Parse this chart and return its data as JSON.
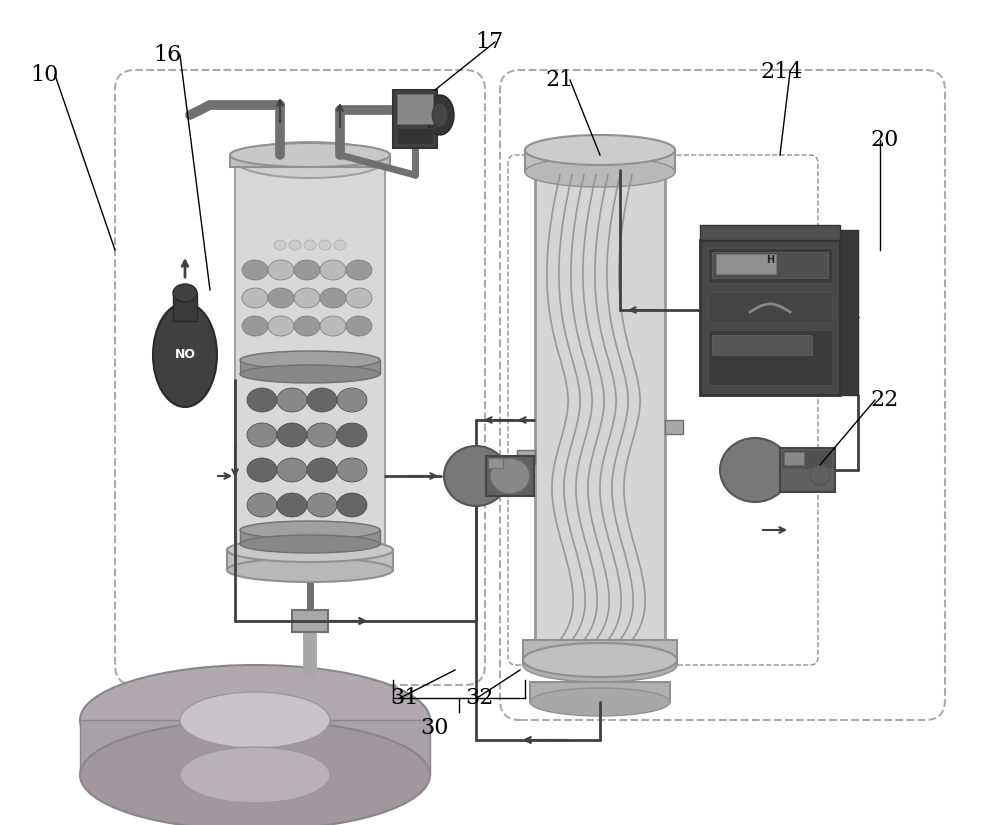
{
  "bg_color": "#ffffff",
  "gc": "#d8d8d8",
  "gm": "#a8a8a8",
  "gd": "#707070",
  "gdk": "#404040",
  "gdkk": "#282828",
  "g_vessel": "#d0d0d0",
  "g_trough": "#b0a8b0",
  "g_trough_dark": "#908890",
  "g_trough_side": "#a09aa0",
  "purple_trough": "#b8a8b8"
}
